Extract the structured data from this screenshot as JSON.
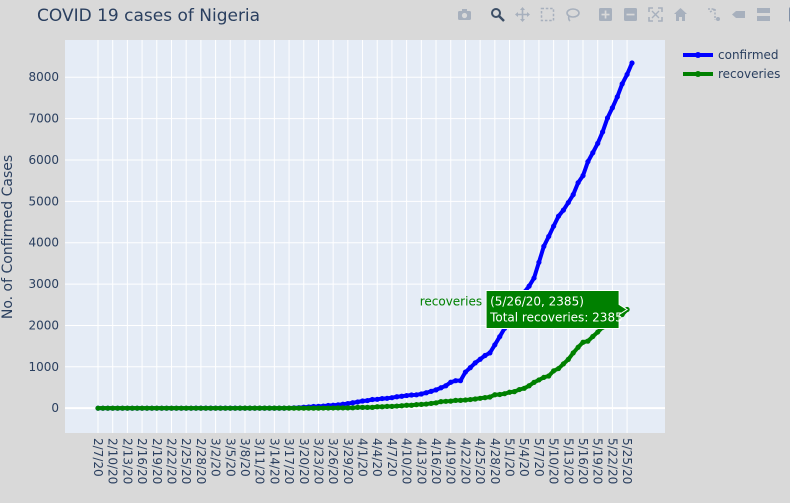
{
  "modebar": {
    "buttons": [
      {
        "name": "camera-icon",
        "active": false
      },
      {
        "gap": true
      },
      {
        "name": "zoom-icon",
        "active": true
      },
      {
        "name": "pan-icon",
        "active": false
      },
      {
        "name": "box-select-icon",
        "active": false
      },
      {
        "name": "lasso-select-icon",
        "active": false
      },
      {
        "gap": true
      },
      {
        "name": "zoom-in-icon",
        "active": false
      },
      {
        "name": "zoom-out-icon",
        "active": false
      },
      {
        "name": "autoscale-icon",
        "active": false
      },
      {
        "name": "reset-axes-icon",
        "active": false
      },
      {
        "gap": true
      },
      {
        "name": "spike-lines-icon",
        "active": false
      },
      {
        "name": "hover-closest-icon",
        "active": false
      },
      {
        "name": "hover-compare-icon",
        "active": false
      },
      {
        "gap": true
      },
      {
        "name": "plotly-logo-icon",
        "active": false
      }
    ]
  },
  "colors": {
    "confirmed": "#0000ff",
    "recoveries": "#008000",
    "plot_bg": "#e5ecf6",
    "paper_bg": "#d9d9d9"
  },
  "hover": {
    "series": "recoveries",
    "line1": "(5/26/20, 2385)",
    "line2": "Total recoveries: 2385"
  },
  "chart_data": {
    "type": "line",
    "title": "COVID 19 cases of Nigeria",
    "xlabel": "",
    "ylabel": "No. of Confirmed Cases",
    "ylim": [
      -600,
      8900
    ],
    "yticks": [
      0,
      1000,
      2000,
      3000,
      4000,
      5000,
      6000,
      7000,
      8000
    ],
    "grid": true,
    "legend_position": "top-right",
    "x_start": "2/7/20",
    "x_tick_labels": [
      "2/7/20",
      "2/10/20",
      "2/13/20",
      "2/16/20",
      "2/19/20",
      "2/22/20",
      "2/25/20",
      "2/28/20",
      "3/2/20",
      "3/5/20",
      "3/8/20",
      "3/11/20",
      "3/14/20",
      "3/17/20",
      "3/20/20",
      "3/23/20",
      "3/26/20",
      "3/29/20",
      "4/1/20",
      "4/4/20",
      "4/7/20",
      "4/10/20",
      "4/13/20",
      "4/16/20",
      "4/19/20",
      "4/22/20",
      "4/25/20",
      "4/28/20",
      "5/1/20",
      "5/4/20",
      "5/7/20",
      "5/10/20",
      "5/13/20",
      "5/16/20",
      "5/19/20",
      "5/22/20",
      "5/25/20"
    ],
    "series": [
      {
        "name": "confirmed",
        "values": [
          0,
          0,
          0,
          0,
          0,
          0,
          0,
          0,
          0,
          0,
          0,
          0,
          0,
          0,
          0,
          0,
          0,
          0,
          0,
          0,
          1,
          1,
          1,
          1,
          1,
          1,
          1,
          1,
          1,
          1,
          1,
          1,
          1,
          1,
          1,
          1,
          1,
          1,
          2,
          3,
          8,
          12,
          22,
          30,
          40,
          44,
          51,
          65,
          70,
          81,
          97,
          111,
          131,
          151,
          174,
          184,
          210,
          214,
          232,
          238,
          254,
          276,
          288,
          305,
          318,
          323,
          343,
          373,
          407,
          442,
          493,
          542,
          627,
          665,
          665,
          873,
          981,
          1095,
          1182,
          1273,
          1337,
          1532,
          1728,
          1932,
          2170,
          2388,
          2558,
          2802,
          2950,
          3145,
          3526,
          3912,
          4151,
          4399,
          4641,
          4787,
          4971,
          5162,
          5450,
          5621,
          5959,
          6175,
          6401,
          6677,
          7016,
          7261,
          7526,
          7839,
          8068,
          8344
        ],
        "dash": "solid"
      },
      {
        "name": "recoveries",
        "values": [
          0,
          0,
          0,
          0,
          0,
          0,
          0,
          0,
          0,
          0,
          0,
          0,
          0,
          0,
          0,
          0,
          0,
          0,
          0,
          0,
          0,
          0,
          0,
          0,
          0,
          0,
          0,
          0,
          0,
          1,
          1,
          1,
          1,
          1,
          1,
          1,
          1,
          1,
          1,
          1,
          1,
          2,
          2,
          2,
          2,
          2,
          3,
          3,
          5,
          7,
          8,
          8,
          9,
          20,
          20,
          20,
          20,
          35,
          35,
          44,
          44,
          51,
          58,
          70,
          70,
          85,
          91,
          99,
          115,
          128,
          159,
          166,
          170,
          188,
          188,
          197,
          208,
          222,
          239,
          255,
          270,
          325,
          330,
          350,
          385,
          400,
          450,
          480,
          542,
          624,
          683,
          745,
          778,
          902,
          958,
          1070,
          1180,
          1336,
          1472,
          1594,
          1621,
          1733,
          1840,
          1956,
          2007,
          2111,
          2175,
          2263,
          2385
        ],
        "dash": "solid"
      }
    ]
  }
}
